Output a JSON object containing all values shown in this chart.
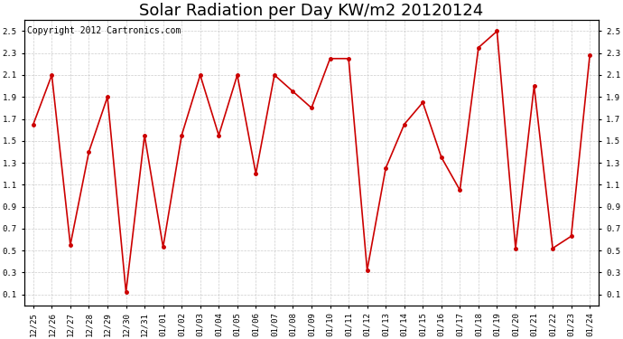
{
  "title": "Solar Radiation per Day KW/m2 20120124",
  "copyright": "Copyright 2012 Cartronics.com",
  "x_labels": [
    "12/25",
    "12/26",
    "12/27",
    "12/28",
    "12/29",
    "12/30",
    "12/31",
    "01/01",
    "01/02",
    "01/03",
    "01/04",
    "01/05",
    "01/06",
    "01/07",
    "01/08",
    "01/09",
    "01/10",
    "01/11",
    "01/12",
    "01/13",
    "01/14",
    "01/15",
    "01/16",
    "01/17",
    "01/18",
    "01/19",
    "01/20",
    "01/21",
    "01/22",
    "01/23",
    "01/24"
  ],
  "y_values": [
    1.65,
    2.1,
    0.55,
    1.4,
    1.9,
    0.12,
    1.55,
    0.53,
    1.55,
    2.1,
    1.55,
    2.1,
    1.2,
    2.1,
    1.95,
    1.8,
    2.25,
    2.25,
    0.32,
    1.25,
    1.65,
    1.85,
    1.35,
    1.05,
    2.35,
    2.5,
    0.52,
    2.0,
    0.52,
    0.63,
    2.28
  ],
  "line_color": "#cc0000",
  "marker_color": "#cc0000",
  "bg_color": "#ffffff",
  "plot_bg_color": "#ffffff",
  "grid_color": "#c0c0c0",
  "ylim": [
    0.0,
    2.6
  ],
  "yticks": [
    0.1,
    0.3,
    0.5,
    0.7,
    0.9,
    1.1,
    1.3,
    1.5,
    1.7,
    1.9,
    2.1,
    2.3,
    2.5
  ],
  "title_fontsize": 13,
  "tick_fontsize": 6.5,
  "copyright_fontsize": 7
}
